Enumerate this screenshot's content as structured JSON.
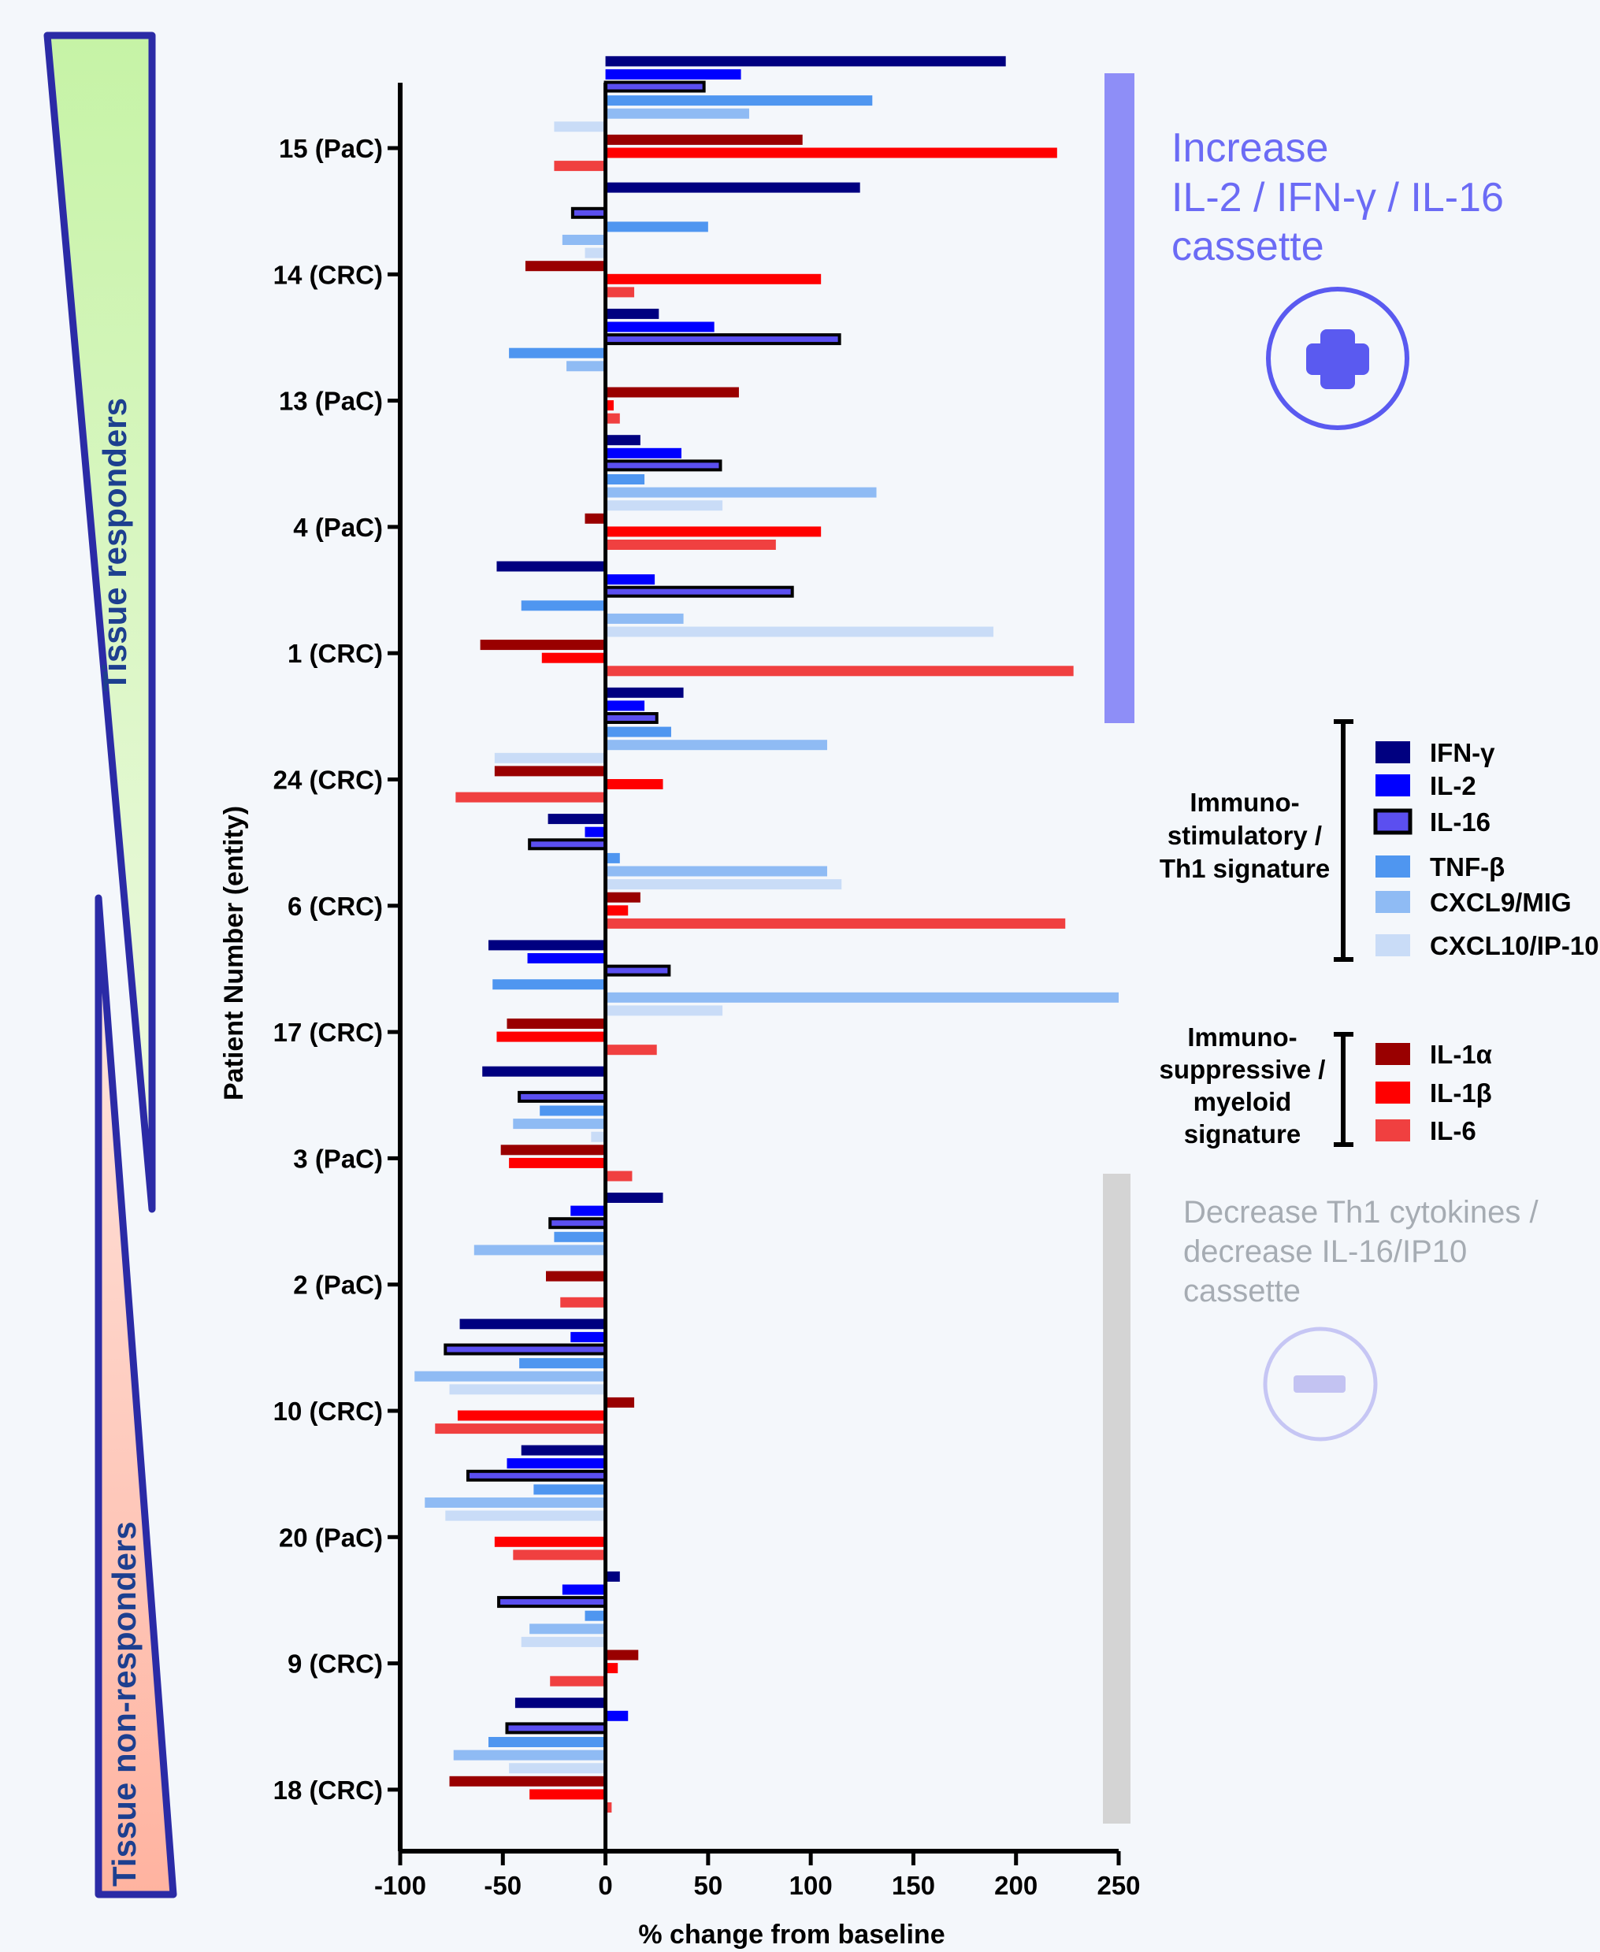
{
  "chart_data": {
    "type": "bar",
    "orientation": "horizontal",
    "xlabel": "% change from baseline",
    "ylabel": "Patient Number (entity)",
    "xlim": [
      -100,
      250
    ],
    "xticks": [
      -100,
      -50,
      0,
      50,
      100,
      150,
      200,
      250
    ],
    "grid": false,
    "categories": [
      "15 (PaC)",
      "14 (CRC)",
      "13 (PaC)",
      "4 (PaC)",
      "1 (CRC)",
      "24 (CRC)",
      "6 (CRC)",
      "17 (CRC)",
      "3 (PaC)",
      "2 (PaC)",
      "10 (CRC)",
      "20 (PaC)",
      "9 (CRC)",
      "18 (CRC)"
    ],
    "series": [
      {
        "name": "IFN-γ",
        "color": "#000080",
        "values": [
          195,
          124,
          26,
          17,
          -53,
          38,
          -28,
          -57,
          -60,
          28,
          -71,
          -41,
          7,
          -44
        ]
      },
      {
        "name": "IL-2",
        "color": "#0000ff",
        "values": [
          66,
          0,
          53,
          37,
          24,
          19,
          -10,
          -38,
          0,
          -17,
          -17,
          -48,
          -21,
          11
        ]
      },
      {
        "name": "IL-16",
        "color": "#5b4ff0",
        "outline": true,
        "values": [
          48,
          -16,
          114,
          56,
          91,
          25,
          -37,
          31,
          -42,
          -27,
          -78,
          -67,
          -52,
          -48
        ]
      },
      {
        "name": "TNF-β",
        "color": "#4f96f0",
        "values": [
          130,
          50,
          -47,
          19,
          -41,
          32,
          7,
          -55,
          -32,
          -25,
          -42,
          -35,
          -10,
          -57
        ]
      },
      {
        "name": "CXCL9/MIG",
        "color": "#8fbbf4",
        "values": [
          70,
          -21,
          -19,
          132,
          38,
          108,
          108,
          250,
          -45,
          -64,
          -93,
          -88,
          -37,
          -74
        ]
      },
      {
        "name": "CXCL10/IP-10",
        "color": "#c9dcf7",
        "values": [
          -25,
          -10,
          0,
          57,
          189,
          -54,
          115,
          57,
          -7,
          0,
          -76,
          -78,
          -41,
          -47
        ]
      },
      {
        "name": "IL-1α",
        "color": "#990000",
        "values": [
          96,
          -39,
          65,
          -10,
          -61,
          -54,
          17,
          -48,
          -51,
          -29,
          14,
          0,
          16,
          -76
        ]
      },
      {
        "name": "IL-1β",
        "color": "#ff0000",
        "values": [
          220,
          105,
          4,
          105,
          -31,
          28,
          11,
          -53,
          -47,
          0,
          -72,
          -54,
          6,
          -37
        ]
      },
      {
        "name": "IL-6",
        "color": "#f04040",
        "values": [
          -25,
          14,
          7,
          83,
          228,
          -73,
          224,
          25,
          13,
          -22,
          -83,
          -45,
          -27,
          3
        ]
      }
    ]
  },
  "title_increase": [
    "Increase",
    "IL-2 / IFN-γ / IL-16",
    "cassette"
  ],
  "title_decrease": [
    "Decrease Th1 cytokines /",
    "decrease IL-16/IP10",
    "cassette"
  ],
  "label_responders": "Tissue  responders",
  "label_nonresponders": "Tissue non-responders",
  "legend_group1_label": [
    "Immuno-",
    "stimulatory /",
    "Th1 signature"
  ],
  "legend_group2_label": [
    "Immuno-",
    "suppressive /",
    "myeloid",
    "signature"
  ],
  "legend_group1_items": [
    "IFN-γ",
    "IL-2",
    "IL-16",
    "TNF-β",
    "CXCL9/MIG",
    "CXCL10/IP-10"
  ],
  "legend_group2_items": [
    "IL-1α",
    "IL-1β",
    "IL-6"
  ],
  "colors": {
    "increase_accent": "#6b6bf5",
    "increase_band": "#8e8ef7",
    "decrease_text": "#a6acb3",
    "decrease_band": "#d4d4d4",
    "responder_fill": "#ccf2b3",
    "nonresponder_fill": "#ffb8a8",
    "triangle_border": "#2b2ba6"
  },
  "icons": {
    "increase": "plus-circle-icon",
    "decrease": "minus-circle-icon"
  }
}
